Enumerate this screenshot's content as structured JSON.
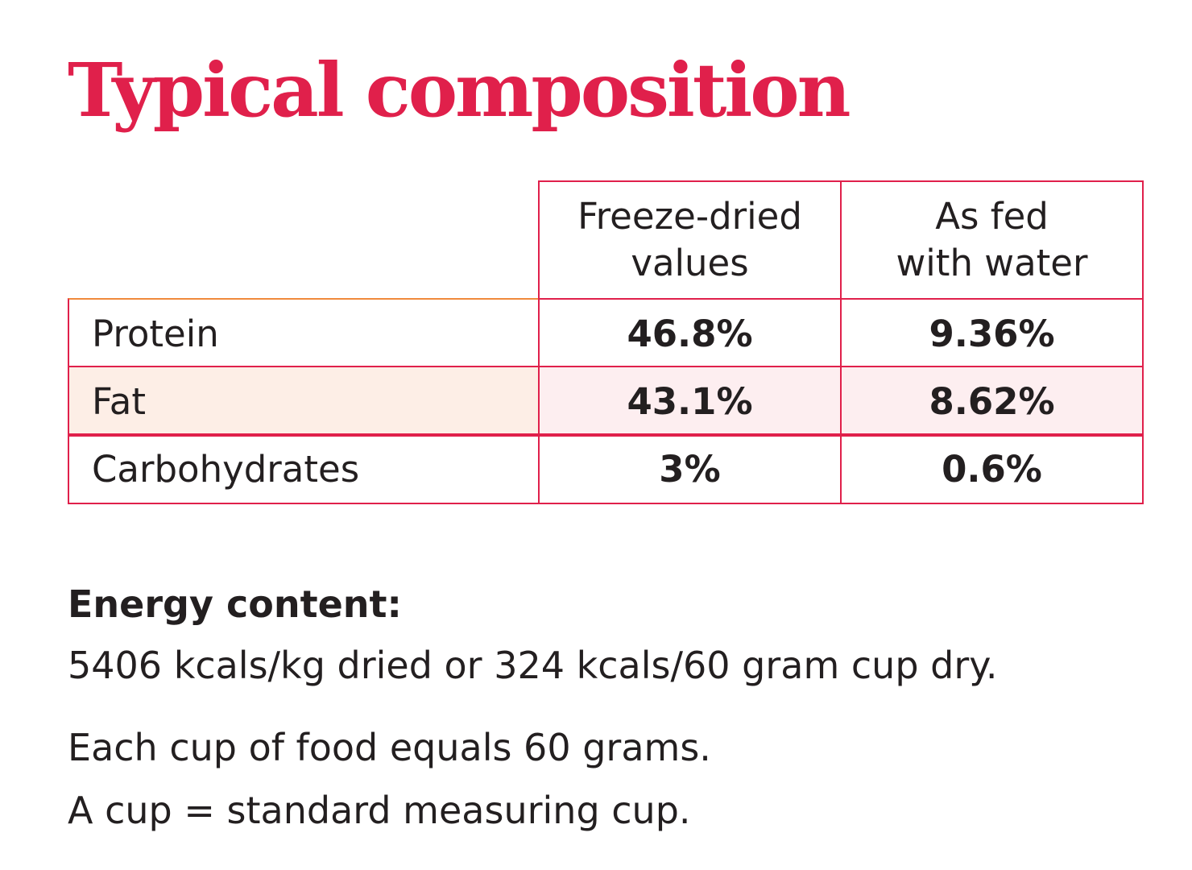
{
  "title": "Typical composition",
  "table": {
    "headers": [
      {
        "line1": "Freeze-dried",
        "line2": "values"
      },
      {
        "line1": "As fed",
        "line2": "with water"
      }
    ],
    "rows": [
      {
        "label": "Protein",
        "freeze_dried": "46.8%",
        "as_fed": "9.36%"
      },
      {
        "label": "Fat",
        "freeze_dried": "43.1%",
        "as_fed": "8.62%"
      },
      {
        "label": "Carbohydrates",
        "freeze_dried": "3%",
        "as_fed": "0.6%"
      }
    ]
  },
  "energy": {
    "heading": "Energy content:",
    "line": "5406 kcals/kg dried or 324 kcals/60 gram cup dry."
  },
  "notes": {
    "cup_weight": "Each cup of food equals 60 grams.",
    "cup_definition": "A cup = standard measuring cup."
  },
  "colors": {
    "accent": "#e0204b",
    "text": "#231f20",
    "highlight_row": "#fdeef0"
  }
}
